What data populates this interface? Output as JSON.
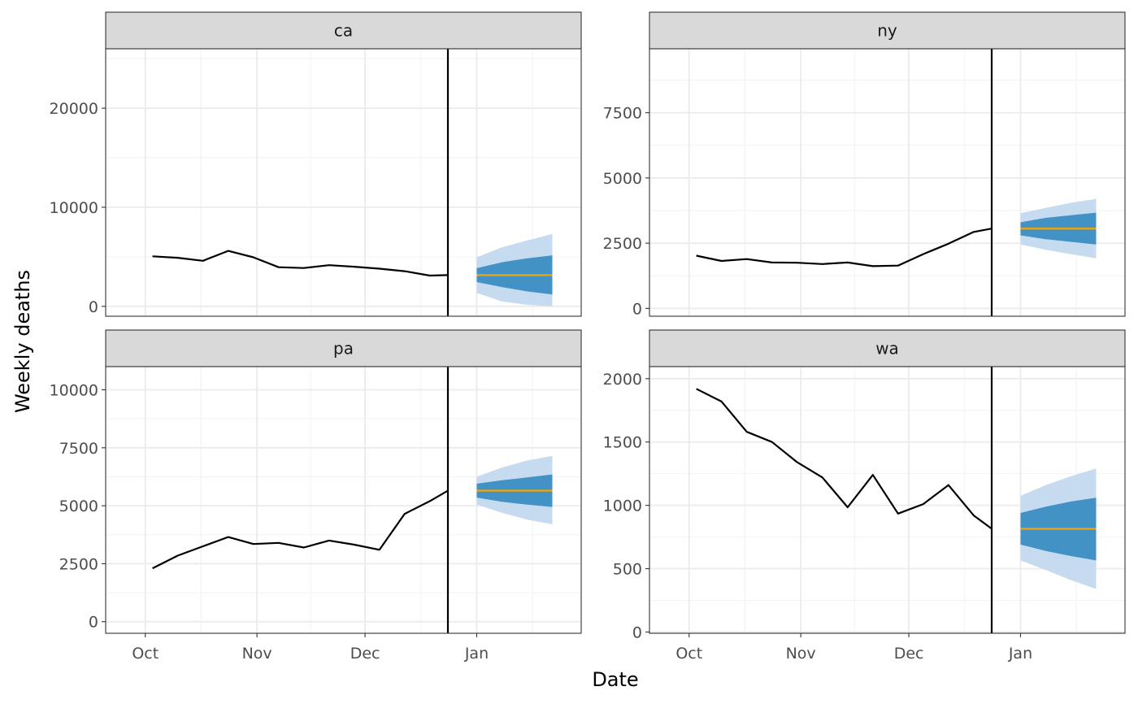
{
  "chart_data": {
    "type": "line",
    "xlabel": "Date",
    "ylabel": "Weekly deaths",
    "x_ticks": [
      {
        "date": "2020-10-01",
        "label": "Oct"
      },
      {
        "date": "2020-11-01",
        "label": "Nov"
      },
      {
        "date": "2020-12-01",
        "label": "Dec"
      },
      {
        "date": "2021-01-01",
        "label": "Jan"
      }
    ],
    "forecast_date": "2020-12-24",
    "grid": true,
    "colors": {
      "observed": "#000000",
      "median": "#f0a30a",
      "interval_outer": "#c6dbef",
      "interval_inner": "#4292c6"
    },
    "panels": [
      {
        "strip": "ca",
        "ylim": [
          -1000,
          26000
        ],
        "y_ticks": [
          0,
          10000,
          20000
        ],
        "observed": [
          [
            "2020-10-03",
            5050
          ],
          [
            "2020-10-10",
            4900
          ],
          [
            "2020-10-17",
            4600
          ],
          [
            "2020-10-24",
            5600
          ],
          [
            "2020-10-31",
            4950
          ],
          [
            "2020-11-07",
            3950
          ],
          [
            "2020-11-14",
            3870
          ],
          [
            "2020-11-21",
            4150
          ],
          [
            "2020-11-28",
            4000
          ],
          [
            "2020-12-05",
            3800
          ],
          [
            "2020-12-12",
            3550
          ],
          [
            "2020-12-19",
            3100
          ],
          [
            "2020-12-24",
            3150
          ]
        ],
        "forecast": [
          {
            "date": "2021-01-01",
            "median": 3150,
            "lo90": 1350,
            "hi90": 4950,
            "lo50": 2450,
            "hi50": 3850
          },
          {
            "date": "2021-01-08",
            "median": 3150,
            "lo90": 500,
            "hi90": 5950,
            "lo50": 1950,
            "hi50": 4450
          },
          {
            "date": "2021-01-15",
            "median": 3150,
            "lo90": 150,
            "hi90": 6650,
            "lo50": 1500,
            "hi50": 4850
          },
          {
            "date": "2021-01-22",
            "median": 3150,
            "lo90": 0,
            "hi90": 7300,
            "lo50": 1200,
            "hi50": 5150
          }
        ]
      },
      {
        "strip": "ny",
        "ylim": [
          -300,
          9950
        ],
        "y_ticks": [
          0,
          2500,
          5000,
          7500
        ],
        "observed": [
          [
            "2020-10-03",
            2020
          ],
          [
            "2020-10-10",
            1820
          ],
          [
            "2020-10-17",
            1890
          ],
          [
            "2020-10-24",
            1760
          ],
          [
            "2020-10-31",
            1750
          ],
          [
            "2020-11-07",
            1700
          ],
          [
            "2020-11-14",
            1760
          ],
          [
            "2020-11-21",
            1620
          ],
          [
            "2020-11-28",
            1640
          ],
          [
            "2020-12-05",
            2080
          ],
          [
            "2020-12-12",
            2480
          ],
          [
            "2020-12-19",
            2930
          ],
          [
            "2020-12-24",
            3060
          ]
        ],
        "forecast": [
          {
            "date": "2021-01-01",
            "median": 3060,
            "lo90": 2450,
            "hi90": 3650,
            "lo50": 2800,
            "hi50": 3300
          },
          {
            "date": "2021-01-08",
            "median": 3060,
            "lo90": 2250,
            "hi90": 3850,
            "lo50": 2650,
            "hi50": 3470
          },
          {
            "date": "2021-01-15",
            "median": 3060,
            "lo90": 2080,
            "hi90": 4050,
            "lo50": 2550,
            "hi50": 3570
          },
          {
            "date": "2021-01-22",
            "median": 3060,
            "lo90": 1920,
            "hi90": 4200,
            "lo50": 2450,
            "hi50": 3670
          }
        ]
      },
      {
        "strip": "pa",
        "ylim": [
          -500,
          11000
        ],
        "y_ticks": [
          0,
          2500,
          5000,
          7500,
          10000
        ],
        "observed": [
          [
            "2020-10-03",
            2300
          ],
          [
            "2020-10-10",
            2850
          ],
          [
            "2020-10-17",
            3250
          ],
          [
            "2020-10-24",
            3650
          ],
          [
            "2020-10-31",
            3350
          ],
          [
            "2020-11-07",
            3400
          ],
          [
            "2020-11-14",
            3200
          ],
          [
            "2020-11-21",
            3500
          ],
          [
            "2020-11-28",
            3320
          ],
          [
            "2020-12-05",
            3100
          ],
          [
            "2020-12-12",
            4650
          ],
          [
            "2020-12-19",
            5200
          ],
          [
            "2020-12-24",
            5650
          ]
        ],
        "forecast": [
          {
            "date": "2021-01-01",
            "median": 5650,
            "lo90": 5050,
            "hi90": 6250,
            "lo50": 5350,
            "hi50": 5950
          },
          {
            "date": "2021-01-08",
            "median": 5650,
            "lo90": 4700,
            "hi90": 6650,
            "lo50": 5170,
            "hi50": 6100
          },
          {
            "date": "2021-01-15",
            "median": 5650,
            "lo90": 4400,
            "hi90": 6950,
            "lo50": 5050,
            "hi50": 6220
          },
          {
            "date": "2021-01-22",
            "median": 5650,
            "lo90": 4200,
            "hi90": 7150,
            "lo50": 4950,
            "hi50": 6350
          }
        ]
      },
      {
        "strip": "wa",
        "ylim": [
          -10,
          2095
        ],
        "y_ticks": [
          0,
          500,
          1000,
          1500,
          2000
        ],
        "observed": [
          [
            "2020-10-03",
            1920
          ],
          [
            "2020-10-10",
            1820
          ],
          [
            "2020-10-17",
            1580
          ],
          [
            "2020-10-24",
            1500
          ],
          [
            "2020-10-31",
            1340
          ],
          [
            "2020-11-07",
            1220
          ],
          [
            "2020-11-14",
            985
          ],
          [
            "2020-11-21",
            1240
          ],
          [
            "2020-11-28",
            935
          ],
          [
            "2020-12-05",
            1010
          ],
          [
            "2020-12-12",
            1160
          ],
          [
            "2020-12-19",
            920
          ],
          [
            "2020-12-24",
            815
          ]
        ],
        "forecast": [
          {
            "date": "2021-01-01",
            "median": 815,
            "lo90": 565,
            "hi90": 1075,
            "lo50": 690,
            "hi50": 940
          },
          {
            "date": "2021-01-08",
            "median": 815,
            "lo90": 490,
            "hi90": 1160,
            "lo50": 640,
            "hi50": 990
          },
          {
            "date": "2021-01-15",
            "median": 815,
            "lo90": 410,
            "hi90": 1230,
            "lo50": 600,
            "hi50": 1030
          },
          {
            "date": "2021-01-22",
            "median": 815,
            "lo90": 340,
            "hi90": 1290,
            "lo50": 565,
            "hi50": 1060
          }
        ]
      }
    ]
  }
}
